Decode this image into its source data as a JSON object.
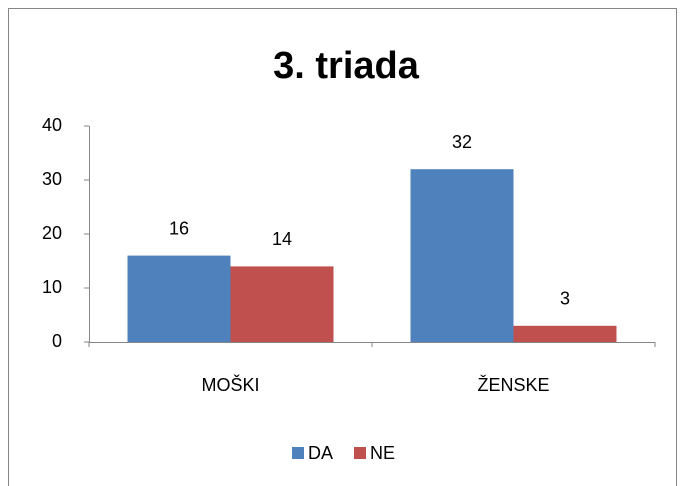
{
  "chart_data": {
    "type": "bar",
    "title": "3. triada",
    "categories": [
      "MOŠKI",
      "ŽENSKE"
    ],
    "series": [
      {
        "name": "DA",
        "color": "#4f81bd",
        "values": [
          16,
          32
        ]
      },
      {
        "name": "NE",
        "color": "#c0504d",
        "values": [
          14,
          3
        ]
      }
    ],
    "ylim": [
      0,
      40
    ],
    "yticks": [
      0,
      10,
      20,
      30,
      40
    ],
    "grid": false,
    "legend": "bottom"
  }
}
